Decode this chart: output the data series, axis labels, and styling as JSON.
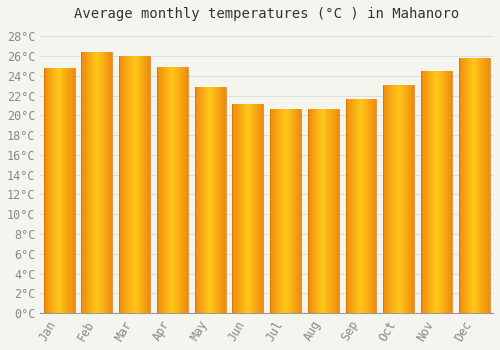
{
  "title": "Average monthly temperatures (°C ) in Mahanoro",
  "months": [
    "Jan",
    "Feb",
    "Mar",
    "Apr",
    "May",
    "Jun",
    "Jul",
    "Aug",
    "Sep",
    "Oct",
    "Nov",
    "Dec"
  ],
  "values": [
    24.8,
    26.4,
    26.0,
    24.9,
    22.9,
    21.1,
    20.6,
    20.6,
    21.6,
    23.1,
    24.5,
    25.8
  ],
  "bar_color_center": "#FFB700",
  "bar_color_edge": "#F08000",
  "ylim": [
    0,
    29
  ],
  "ytick_step": 2,
  "background_color": "#F5F5F0",
  "plot_bg_color": "#F5F5F0",
  "grid_color": "#DDDDDD",
  "tick_label_color": "#888888",
  "title_fontsize": 10,
  "axis_label_fontsize": 8.5
}
